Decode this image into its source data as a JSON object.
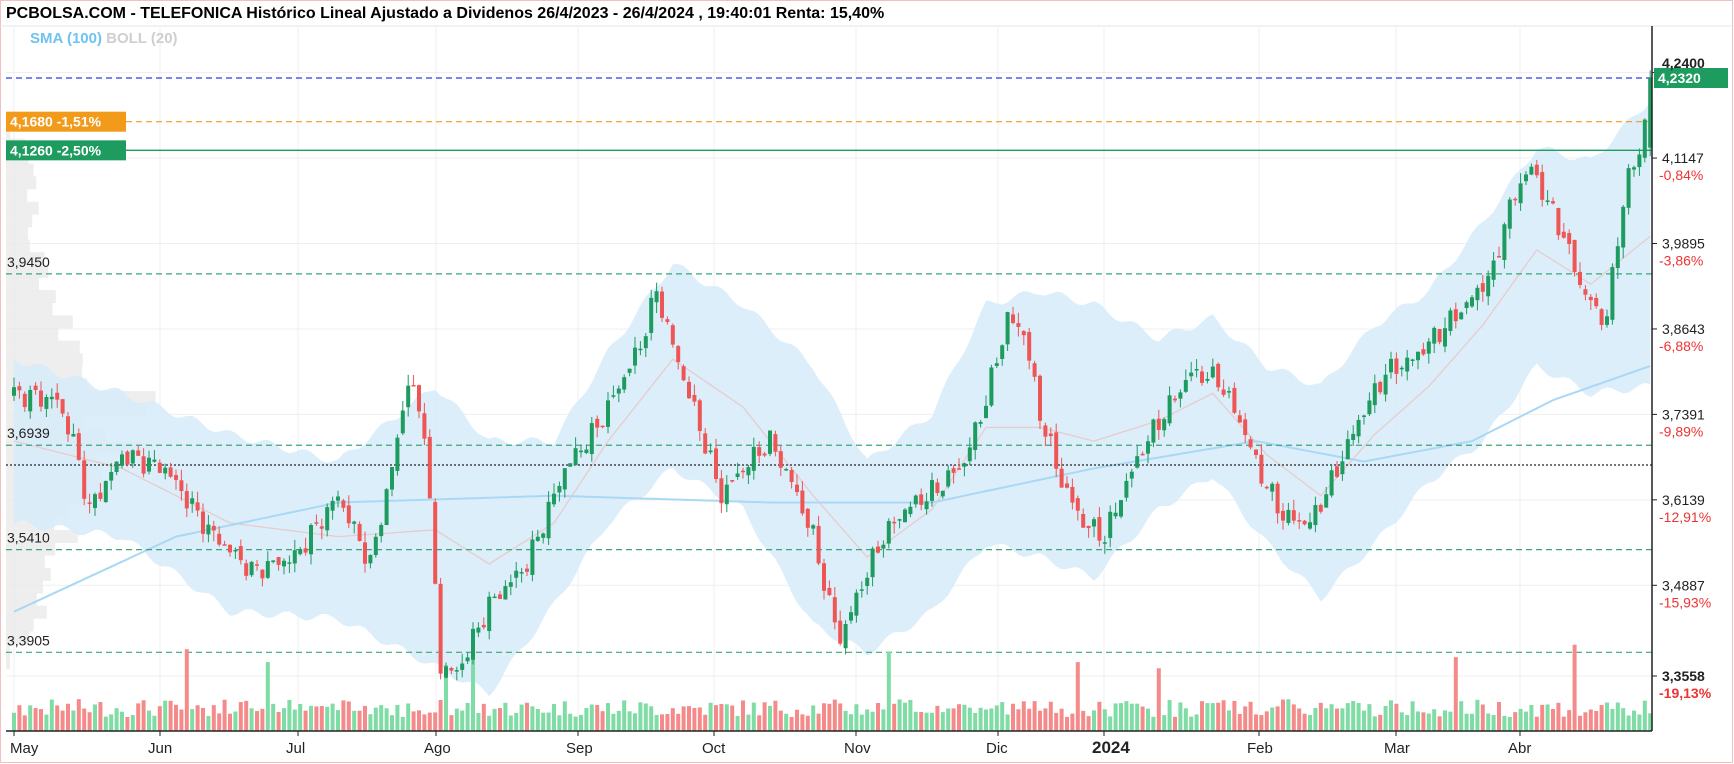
{
  "header": {
    "title": "PCBOLSA.COM - TELEFONICA Histórico Lineal Ajustado a Dividenos 26/4/2023 - 26/4/2024 , 19:40:01 Renta: 15,40%",
    "legend_sma": "SMA (100)",
    "legend_boll": "BOLL (20)"
  },
  "tags": {
    "orange": "4,1680 -1,51%",
    "green": "4,1260 -2,50%",
    "current": "4,2320",
    "top_price": "4,2400"
  },
  "left_levels": [
    "3,9450",
    "3,6939",
    "3,5410",
    "3,3905"
  ],
  "colors": {
    "up": "#1e9b5f",
    "down": "#ee5555",
    "vol_up": "#7fdca5",
    "vol_down": "#f58a8a",
    "band_fill": "#d7ebfa",
    "sma": "#a9d8f5",
    "mid": "#e6cccc",
    "blue_line": "#2b3be8",
    "orange_line": "#f29a1a",
    "green_line": "#1e9b5f",
    "neg_pct": "#ee3333"
  },
  "chart_data": {
    "type": "candlestick",
    "title": "PCBOLSA.COM - TELEFONICA Histórico Lineal Ajustado a Dividenos 26/4/2023 - 26/4/2024 , 19:40:01 Renta: 15,40%",
    "y_axis": {
      "ticks": [
        {
          "value": 4.24,
          "label": "4,2400",
          "pct": ""
        },
        {
          "value": 4.1147,
          "label": "4,1147",
          "pct": "-0,84%"
        },
        {
          "value": 3.9895,
          "label": "3,9895",
          "pct": "-3,86%"
        },
        {
          "value": 3.8643,
          "label": "3,8643",
          "pct": "-6,88%"
        },
        {
          "value": 3.7391,
          "label": "3,7391",
          "pct": "-9,89%"
        },
        {
          "value": 3.6139,
          "label": "3,6139",
          "pct": "-12,91%"
        },
        {
          "value": 3.4887,
          "label": "3,4887",
          "pct": "-15,93%"
        },
        {
          "value": 3.3558,
          "label": "3,3558",
          "pct": "-19,13%"
        }
      ],
      "ylim": [
        3.32,
        4.26
      ]
    },
    "x_axis": {
      "labels": [
        "May",
        "Jun",
        "Jul",
        "Ago",
        "Sep",
        "Oct",
        "Nov",
        "Dic",
        "2024",
        "Feb",
        "Mar",
        "Abr"
      ],
      "bold_label": "2024"
    },
    "reference_lines": [
      {
        "value": 4.232,
        "style": "dashed",
        "color": "blue"
      },
      {
        "value": 4.168,
        "style": "dashed",
        "color": "orange"
      },
      {
        "value": 4.126,
        "style": "solid",
        "color": "green"
      },
      {
        "value": 3.945,
        "style": "dashed",
        "color": "teal"
      },
      {
        "value": 3.6939,
        "style": "dashed",
        "color": "teal"
      },
      {
        "value": 3.665,
        "style": "dotted",
        "color": "black"
      },
      {
        "value": 3.541,
        "style": "dashed",
        "color": "teal"
      },
      {
        "value": 3.3905,
        "style": "dashed",
        "color": "teal"
      }
    ],
    "close_key_points": [
      [
        0,
        3.77
      ],
      [
        8,
        3.76
      ],
      [
        11,
        3.7
      ],
      [
        14,
        3.6
      ],
      [
        20,
        3.68
      ],
      [
        28,
        3.66
      ],
      [
        36,
        3.57
      ],
      [
        44,
        3.51
      ],
      [
        52,
        3.53
      ],
      [
        60,
        3.62
      ],
      [
        66,
        3.52
      ],
      [
        70,
        3.66
      ],
      [
        73,
        3.79
      ],
      [
        76,
        3.72
      ],
      [
        79,
        3.37
      ],
      [
        82,
        3.36
      ],
      [
        88,
        3.46
      ],
      [
        95,
        3.52
      ],
      [
        102,
        3.66
      ],
      [
        108,
        3.72
      ],
      [
        116,
        3.84
      ],
      [
        119,
        3.92
      ],
      [
        122,
        3.84
      ],
      [
        127,
        3.72
      ],
      [
        131,
        3.62
      ],
      [
        135,
        3.66
      ],
      [
        140,
        3.7
      ],
      [
        144,
        3.64
      ],
      [
        148,
        3.56
      ],
      [
        151,
        3.46
      ],
      [
        153,
        3.41
      ],
      [
        157,
        3.49
      ],
      [
        161,
        3.56
      ],
      [
        165,
        3.6
      ],
      [
        171,
        3.63
      ],
      [
        176,
        3.67
      ],
      [
        180,
        3.76
      ],
      [
        184,
        3.88
      ],
      [
        187,
        3.86
      ],
      [
        190,
        3.74
      ],
      [
        194,
        3.64
      ],
      [
        198,
        3.58
      ],
      [
        202,
        3.56
      ],
      [
        205,
        3.62
      ],
      [
        209,
        3.69
      ],
      [
        213,
        3.74
      ],
      [
        218,
        3.8
      ],
      [
        223,
        3.79
      ],
      [
        227,
        3.73
      ],
      [
        231,
        3.65
      ],
      [
        235,
        3.59
      ],
      [
        240,
        3.58
      ],
      [
        244,
        3.64
      ],
      [
        249,
        3.73
      ],
      [
        254,
        3.8
      ],
      [
        259,
        3.82
      ],
      [
        264,
        3.86
      ],
      [
        269,
        3.9
      ],
      [
        274,
        3.95
      ],
      [
        276,
        4.02
      ],
      [
        279,
        4.08
      ],
      [
        281,
        4.1
      ],
      [
        284,
        4.05
      ],
      [
        287,
        4.0
      ],
      [
        290,
        3.93
      ],
      [
        293,
        3.89
      ],
      [
        295,
        3.88
      ],
      [
        297,
        4.0
      ],
      [
        299,
        4.09
      ],
      [
        301,
        4.12
      ],
      [
        303,
        4.232
      ]
    ],
    "sma_100_key_points": [
      [
        0,
        3.45
      ],
      [
        30,
        3.56
      ],
      [
        60,
        3.61
      ],
      [
        100,
        3.62
      ],
      [
        140,
        3.61
      ],
      [
        170,
        3.61
      ],
      [
        200,
        3.66
      ],
      [
        230,
        3.7
      ],
      [
        250,
        3.67
      ],
      [
        270,
        3.7
      ],
      [
        285,
        3.76
      ],
      [
        303,
        3.81
      ]
    ],
    "boll_20_key_points": [
      [
        0,
        [
          3.58,
          3.7,
          3.82
        ]
      ],
      [
        20,
        [
          3.56,
          3.66,
          3.77
        ]
      ],
      [
        40,
        [
          3.45,
          3.58,
          3.71
        ]
      ],
      [
        60,
        [
          3.44,
          3.56,
          3.67
        ]
      ],
      [
        78,
        [
          3.37,
          3.57,
          3.78
        ]
      ],
      [
        88,
        [
          3.33,
          3.52,
          3.7
        ]
      ],
      [
        100,
        [
          3.46,
          3.58,
          3.7
        ]
      ],
      [
        110,
        [
          3.58,
          3.7,
          3.83
        ]
      ],
      [
        122,
        [
          3.66,
          3.82,
          3.96
        ]
      ],
      [
        135,
        [
          3.6,
          3.75,
          3.9
        ]
      ],
      [
        148,
        [
          3.43,
          3.62,
          3.81
        ]
      ],
      [
        158,
        [
          3.39,
          3.53,
          3.67
        ]
      ],
      [
        170,
        [
          3.45,
          3.6,
          3.74
        ]
      ],
      [
        180,
        [
          3.55,
          3.72,
          3.9
        ]
      ],
      [
        190,
        [
          3.53,
          3.72,
          3.92
        ]
      ],
      [
        200,
        [
          3.5,
          3.7,
          3.9
        ]
      ],
      [
        212,
        [
          3.6,
          3.73,
          3.85
        ]
      ],
      [
        222,
        [
          3.65,
          3.77,
          3.88
        ]
      ],
      [
        232,
        [
          3.55,
          3.68,
          3.81
        ]
      ],
      [
        242,
        [
          3.47,
          3.62,
          3.78
        ]
      ],
      [
        252,
        [
          3.55,
          3.71,
          3.87
        ]
      ],
      [
        262,
        [
          3.64,
          3.78,
          3.92
        ]
      ],
      [
        272,
        [
          3.7,
          3.87,
          4.02
        ]
      ],
      [
        282,
        [
          3.81,
          3.98,
          4.13
        ]
      ],
      [
        292,
        [
          3.77,
          3.93,
          4.11
        ]
      ],
      [
        303,
        [
          3.78,
          4.0,
          4.2
        ]
      ]
    ],
    "volume_profile_key_points": [
      [
        4.15,
        6
      ],
      [
        4.08,
        8
      ],
      [
        4.0,
        6
      ],
      [
        3.95,
        10
      ],
      [
        3.9,
        14
      ],
      [
        3.82,
        20
      ],
      [
        3.77,
        32
      ],
      [
        3.72,
        26
      ],
      [
        3.68,
        30
      ],
      [
        3.63,
        24
      ],
      [
        3.58,
        16
      ],
      [
        3.52,
        12
      ],
      [
        3.46,
        10
      ],
      [
        3.4,
        6
      ]
    ]
  }
}
